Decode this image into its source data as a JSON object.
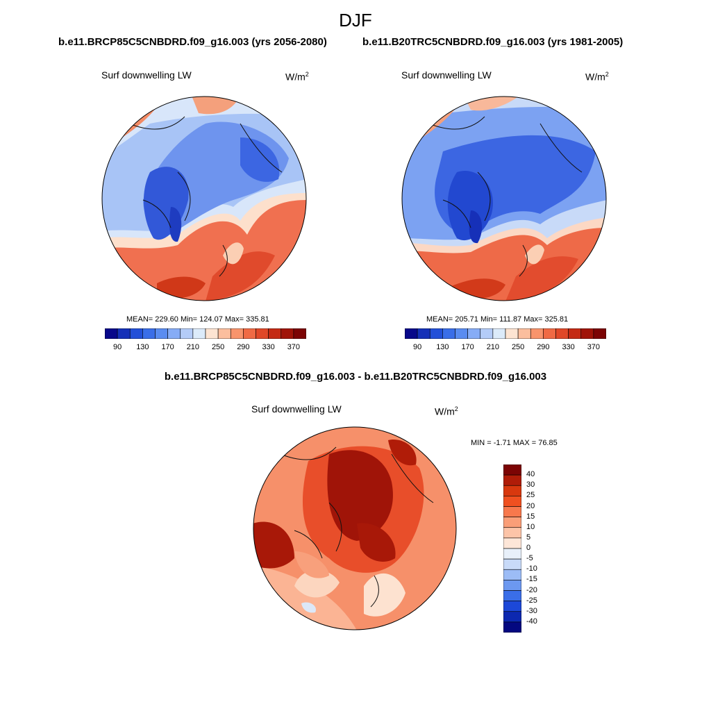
{
  "title": "DJF",
  "panels": [
    {
      "case": "b.e11.BRCP85C5CNBDRD.f09_g16.003 (yrs 2056-2080)",
      "variable": "Surf downwelling LW",
      "units": "W/m",
      "units_sup": "2",
      "stats": "MEAN= 229.60  Min= 124.07  Max= 335.81"
    },
    {
      "case": "b.e11.B20TRC5CNBDRD.f09_g16.003 (yrs 1981-2005)",
      "variable": "Surf downwelling LW",
      "units": "W/m",
      "units_sup": "2",
      "stats": "MEAN= 205.71  Min= 111.87  Max= 325.81"
    }
  ],
  "diff": {
    "title": "b.e11.BRCP85C5CNBDRD.f09_g16.003 - b.e11.B20TRC5CNBDRD.f09_g16.003",
    "variable": "Surf downwelling LW",
    "units": "W/m",
    "units_sup": "2",
    "stats": "MIN =  -1.71 MAX =  76.85"
  },
  "colorbar_abs": {
    "colors": [
      "#08088a",
      "#1530b8",
      "#2350d8",
      "#3a6ee8",
      "#5a8cf0",
      "#86acf6",
      "#b4ccf8",
      "#dcebfa",
      "#fde4d2",
      "#fbbe9e",
      "#f8946c",
      "#f06a44",
      "#e04828",
      "#c42a14",
      "#a01408",
      "#7c0404"
    ],
    "labels": [
      "90",
      "130",
      "170",
      "210",
      "250",
      "290",
      "330",
      "370"
    ]
  },
  "colorbar_diff": {
    "colors": [
      "#7c0404",
      "#b01c08",
      "#d8380e",
      "#f05020",
      "#f8784c",
      "#fa9e78",
      "#fcc4a8",
      "#fde6d8",
      "#e8f0fa",
      "#c8daf8",
      "#9cbcf6",
      "#6c98f0",
      "#3a6ee8",
      "#1c48d8",
      "#0c28b0",
      "#040880"
    ],
    "labels": [
      "40",
      "30",
      "25",
      "20",
      "15",
      "10",
      "5",
      "0",
      "-5",
      "-10",
      "-15",
      "-20",
      "-25",
      "-30",
      "-40"
    ]
  }
}
